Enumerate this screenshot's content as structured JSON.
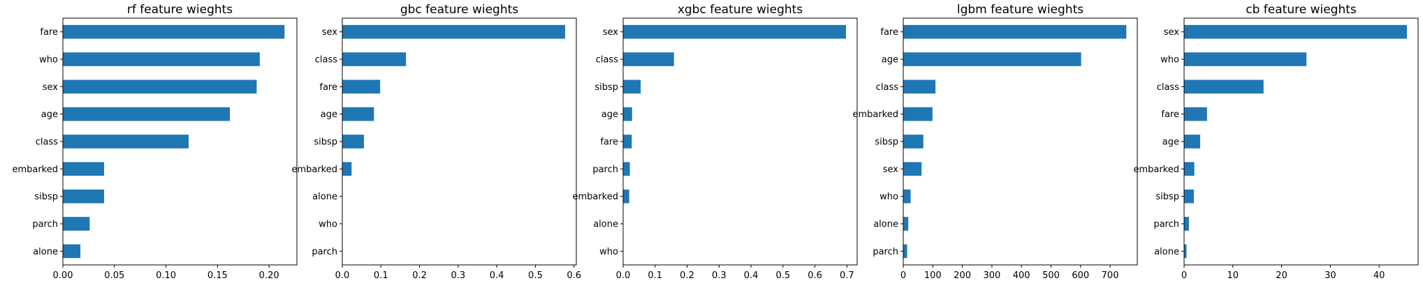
{
  "bar_color": "#1f77b4",
  "chart_data": [
    {
      "type": "bar",
      "orientation": "horizontal",
      "title": "rf feature wieghts",
      "categories": [
        "fare",
        "who",
        "sex",
        "age",
        "class",
        "embarked",
        "sibsp",
        "parch",
        "alone"
      ],
      "values": [
        0.215,
        0.191,
        0.188,
        0.162,
        0.122,
        0.04,
        0.04,
        0.026,
        0.017
      ],
      "xlim": [
        0,
        0.227
      ],
      "xticks": [
        0.0,
        0.05,
        0.1,
        0.15,
        0.2
      ],
      "xtick_labels": [
        "0.00",
        "0.05",
        "0.10",
        "0.15",
        "0.20"
      ]
    },
    {
      "type": "bar",
      "orientation": "horizontal",
      "title": "gbc feature wieghts",
      "categories": [
        "sex",
        "class",
        "fare",
        "age",
        "sibsp",
        "embarked",
        "alone",
        "who",
        "parch"
      ],
      "values": [
        0.577,
        0.165,
        0.098,
        0.082,
        0.056,
        0.024,
        0,
        0,
        0
      ],
      "xlim": [
        0,
        0.606
      ],
      "xticks": [
        0.0,
        0.1,
        0.2,
        0.3,
        0.4,
        0.5,
        0.6
      ],
      "xtick_labels": [
        "0.0",
        "0.1",
        "0.2",
        "0.3",
        "0.4",
        "0.5",
        "0.6"
      ]
    },
    {
      "type": "bar",
      "orientation": "horizontal",
      "title": "xgbc feature wieghts",
      "categories": [
        "sex",
        "class",
        "sibsp",
        "age",
        "fare",
        "parch",
        "embarked",
        "alone",
        "who"
      ],
      "values": [
        0.697,
        0.159,
        0.055,
        0.028,
        0.027,
        0.021,
        0.019,
        0,
        0
      ],
      "xlim": [
        0,
        0.732
      ],
      "xticks": [
        0.0,
        0.1,
        0.2,
        0.3,
        0.4,
        0.5,
        0.6,
        0.7
      ],
      "xtick_labels": [
        "0.0",
        "0.1",
        "0.2",
        "0.3",
        "0.4",
        "0.5",
        "0.6",
        "0.7"
      ]
    },
    {
      "type": "bar",
      "orientation": "horizontal",
      "title": "lgbm feature wieghts",
      "categories": [
        "fare",
        "age",
        "class",
        "embarked",
        "sibsp",
        "sex",
        "who",
        "alone",
        "parch"
      ],
      "values": [
        755,
        602,
        109,
        99,
        68,
        62,
        25,
        17,
        13
      ],
      "xlim": [
        0,
        792
      ],
      "xticks": [
        0,
        100,
        200,
        300,
        400,
        500,
        600,
        700
      ],
      "xtick_labels": [
        "0",
        "100",
        "200",
        "300",
        "400",
        "500",
        "600",
        "700"
      ]
    },
    {
      "type": "bar",
      "orientation": "horizontal",
      "title": "cb feature wieghts",
      "categories": [
        "sex",
        "who",
        "class",
        "fare",
        "age",
        "embarked",
        "sibsp",
        "parch",
        "alone"
      ],
      "values": [
        45.7,
        25.1,
        16.3,
        4.7,
        3.3,
        2.1,
        2.0,
        1.0,
        0.5
      ],
      "xlim": [
        0,
        48.0
      ],
      "xticks": [
        0,
        10,
        20,
        30,
        40
      ],
      "xtick_labels": [
        "0",
        "10",
        "20",
        "30",
        "40"
      ]
    }
  ]
}
